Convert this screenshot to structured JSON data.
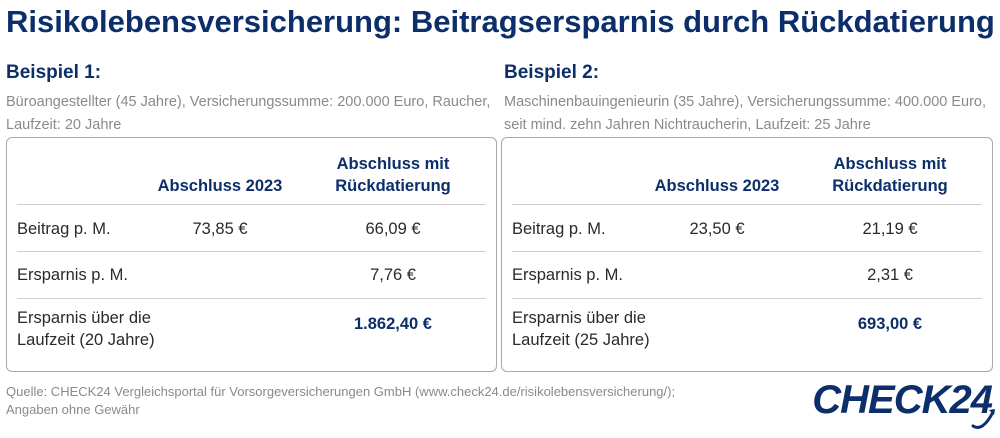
{
  "title": "Risikolebensversicherung: Beitragsersparnis durch Rückdatierung",
  "examples": [
    {
      "heading": "Beispiel 1:",
      "description": "Büroangestellter (45 Jahre),  Versicherungssumme: 200.000 Euro, Raucher, Laufzeit: 20 Jahre",
      "col1": "Abschluss 2023",
      "col2a": "Abschluss mit",
      "col2b": "Rückdatierung",
      "rows": [
        {
          "label": "Beitrag p. M.",
          "v1": "73,85 €",
          "v2": "66,09 €"
        },
        {
          "label": "Ersparnis p. M.",
          "v1": "",
          "v2": "7,76 €"
        },
        {
          "label_a": "Ersparnis über die",
          "label_b": "Laufzeit (20 Jahre)",
          "v1": "",
          "v2": "1.862,40 €"
        }
      ]
    },
    {
      "heading": "Beispiel 2:",
      "description": "Maschinenbauingenieurin (35 Jahre), Versicherungssumme: 400.000 Euro, seit mind. zehn Jahren Nichtraucherin, Laufzeit: 25 Jahre",
      "col1": "Abschluss 2023",
      "col2a": "Abschluss mit",
      "col2b": "Rückdatierung",
      "rows": [
        {
          "label": "Beitrag p. M.",
          "v1": "23,50 €",
          "v2": "21,19 €"
        },
        {
          "label": "Ersparnis p. M.",
          "v1": "",
          "v2": "2,31 €"
        },
        {
          "label_a": "Ersparnis über die",
          "label_b": "Laufzeit (25 Jahre)",
          "v1": "",
          "v2": "693,00 €"
        }
      ]
    }
  ],
  "footer": {
    "line1": "Quelle: CHECK24 Vergleichsportal für Vorsorgeversicherungen GmbH (www.check24.de/risikolebensversicherung/);",
    "line2": "Angaben ohne Gewähr"
  },
  "logo": {
    "text": "CHECK24",
    "icon": "check24-swoosh-icon"
  },
  "colors": {
    "brand_navy": "#0c2f6b",
    "muted_text": "#8a8a8a",
    "border": "#a9a9a9"
  }
}
